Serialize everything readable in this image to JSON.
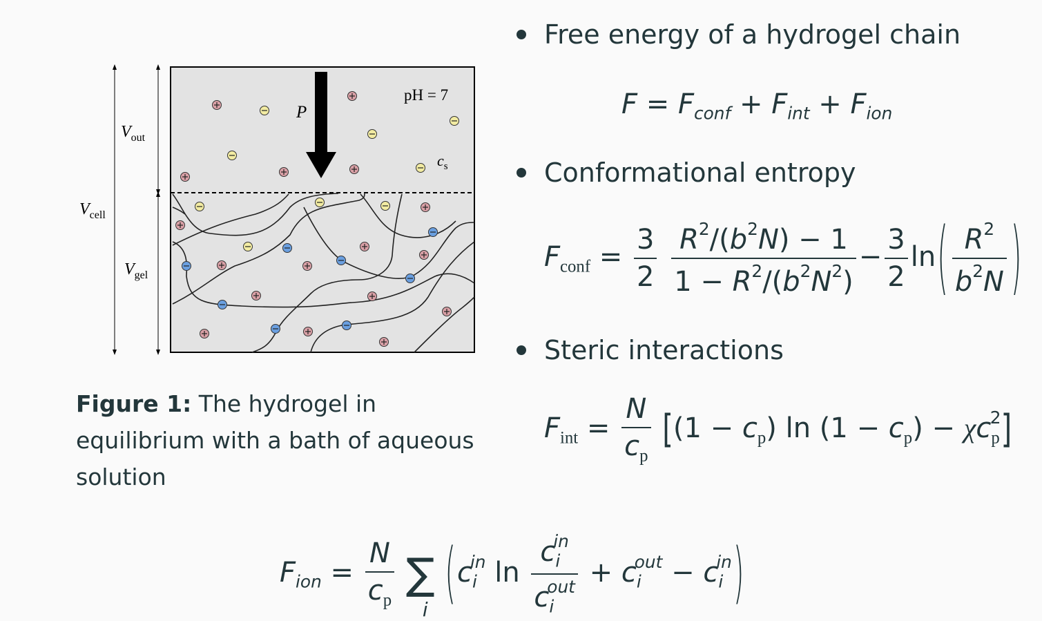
{
  "figure": {
    "label_v_cell": "V",
    "label_v_cell_sub": "cell",
    "label_v_out": "V",
    "label_v_out_sub": "out",
    "label_v_gel": "V",
    "label_v_gel_sub": "gel",
    "label_p": "P",
    "label_ph": "pH = 7",
    "label_cs": "c",
    "label_cs_sub": "s",
    "plus_sign": "+",
    "minus_sign": "−",
    "colors": {
      "box_fill": "#e3e3e3",
      "cation": "#d9a0a6",
      "anion_free": "#f2eba2",
      "anion_fixed": "#6a9fe0"
    }
  },
  "caption": {
    "label": "Figure 1:",
    "text": "The hydrogel in equilibrium with a bath of aqueous solution"
  },
  "bullets": [
    {
      "text": "Free energy of a hydrogel chain"
    },
    {
      "text": "Conformational entropy"
    },
    {
      "text": "Steric interactions"
    }
  ]
}
